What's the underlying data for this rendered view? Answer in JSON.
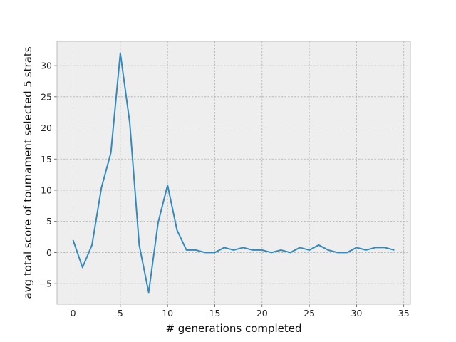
{
  "chart_data": {
    "type": "line",
    "title": "",
    "xlabel": "# generations completed",
    "ylabel": "avg total score of tournament selected 5 strats",
    "xlim": [
      -1.7,
      35.7
    ],
    "ylim": [
      -8.3,
      33.9
    ],
    "xticks": [
      0,
      5,
      10,
      15,
      20,
      25,
      30,
      35
    ],
    "yticks": [
      -5,
      0,
      5,
      10,
      15,
      20,
      25,
      30
    ],
    "grid": true,
    "colors": {
      "background": "#eeeeee",
      "line": "#348abd",
      "grid": "#b2b2b2",
      "spine": "#bcbcbc"
    },
    "series": [
      {
        "x": [
          0,
          1,
          2,
          3,
          4,
          5,
          6,
          7,
          8,
          9,
          10,
          11,
          12,
          13,
          14,
          15,
          16,
          17,
          18,
          19,
          20,
          21,
          22,
          23,
          24,
          25,
          26,
          27,
          28,
          29,
          30,
          31,
          32,
          33,
          34
        ],
        "values": [
          2.0,
          -2.4,
          1.2,
          10.4,
          16.0,
          32.0,
          20.8,
          1.2,
          -6.4,
          4.8,
          10.8,
          3.6,
          0.4,
          0.4,
          0.0,
          0.0,
          0.8,
          0.4,
          0.8,
          0.4,
          0.4,
          0.0,
          0.4,
          0.0,
          0.8,
          0.4,
          1.2,
          0.4,
          0.0,
          0.0,
          0.8,
          0.4,
          0.8,
          0.8,
          0.4
        ]
      }
    ]
  }
}
